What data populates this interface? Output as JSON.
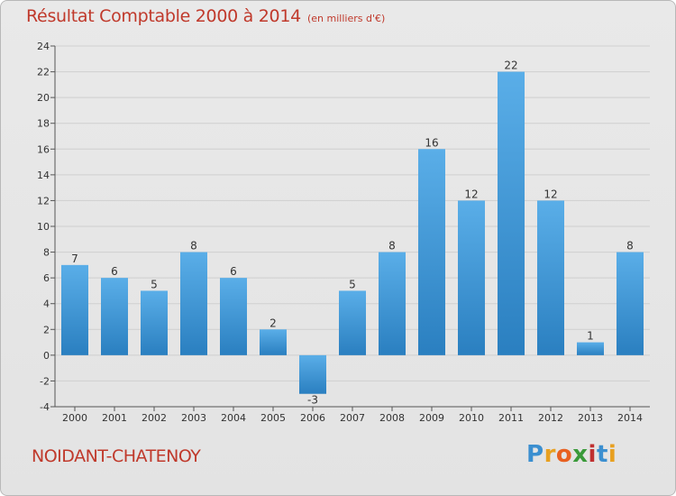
{
  "chart_data": {
    "type": "bar",
    "title": "Résultat Comptable 2000 à 2014",
    "subtitle": "(en milliers d'€)",
    "categories": [
      "2000",
      "2001",
      "2002",
      "2003",
      "2004",
      "2005",
      "2006",
      "2007",
      "2008",
      "2009",
      "2010",
      "2011",
      "2012",
      "2013",
      "2014"
    ],
    "values": [
      7,
      6,
      5,
      8,
      6,
      2,
      -3,
      5,
      8,
      16,
      12,
      22,
      12,
      1,
      8
    ],
    "xlabel": "",
    "ylabel": "",
    "ylim": [
      -4,
      24
    ],
    "yticks": [
      -4,
      -2,
      0,
      2,
      4,
      6,
      8,
      10,
      12,
      14,
      16,
      18,
      20,
      22,
      24
    ],
    "grid": true,
    "legend": "none",
    "bar_color_light": "#5aaee8",
    "bar_color_dark": "#2a7fc0"
  },
  "commune": "NOIDANT-CHATENOY",
  "logo": {
    "letters": [
      "P",
      "r",
      "o",
      "x",
      "i",
      "t",
      "i"
    ],
    "colors": [
      "#3b8fd0",
      "#e8a020",
      "#e86020",
      "#3a9a3a",
      "#c03030",
      "#3b8fd0",
      "#e8a020"
    ]
  },
  "colors": {
    "title": "#c0392b",
    "grid": "#cfcfcf",
    "axis": "#555555"
  }
}
